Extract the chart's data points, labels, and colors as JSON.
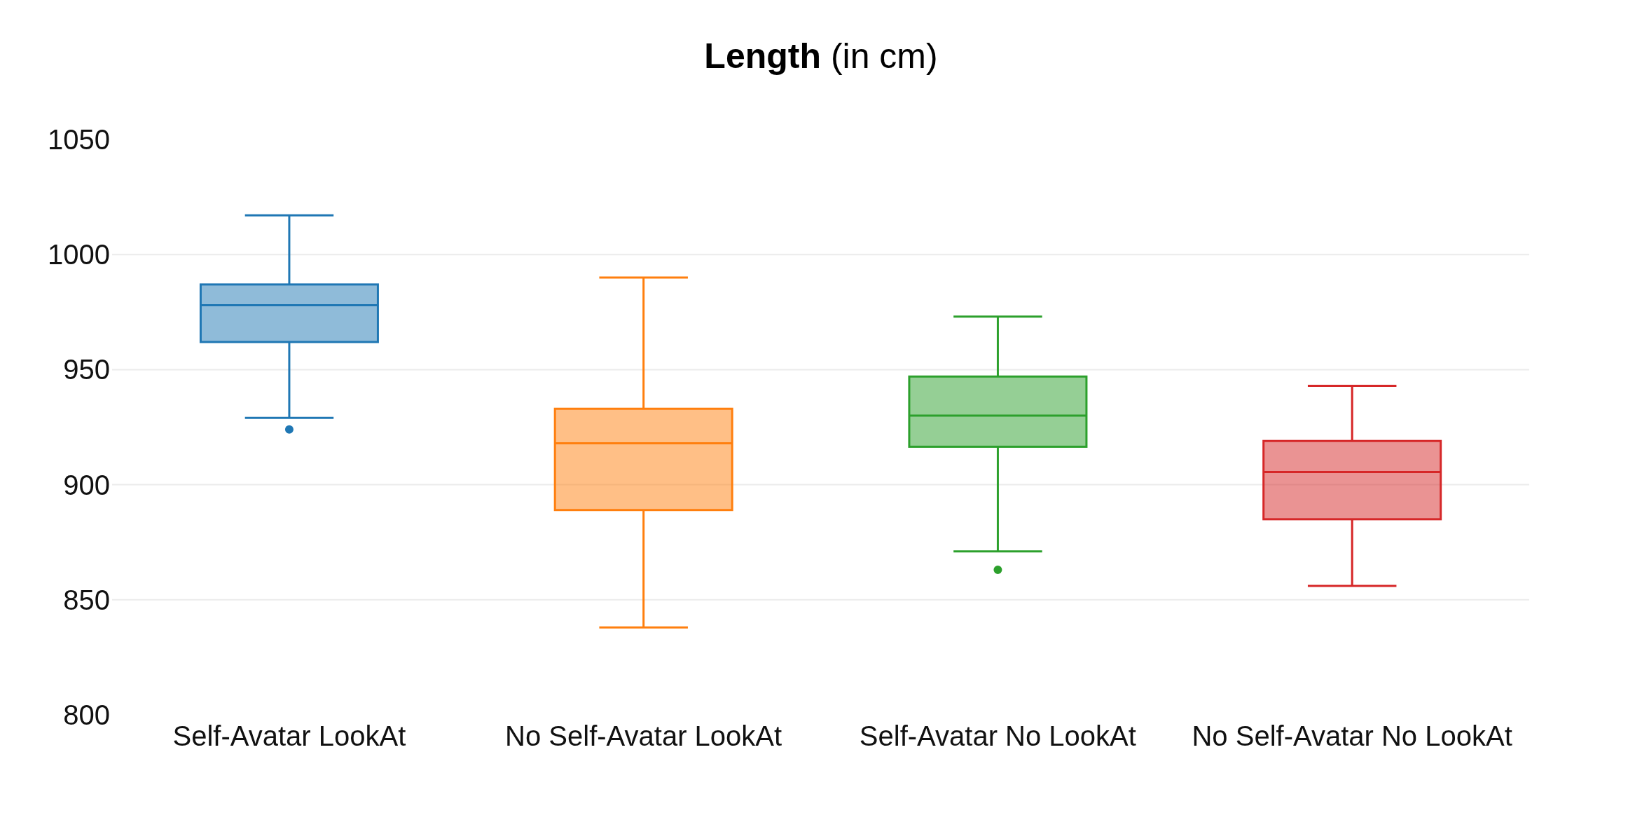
{
  "chart_data": {
    "type": "box",
    "title": "Length (in cm)",
    "categories": [
      "Self-Avatar LookAt",
      "No Self-Avatar LookAt",
      "Self-Avatar No LookAt",
      "No Self-Avatar No LookAt"
    ],
    "boxes": [
      {
        "low": 929,
        "q1": 962,
        "median": 978,
        "q3": 987,
        "high": 1017,
        "outliers": [
          924
        ]
      },
      {
        "low": 838,
        "q1": 889,
        "median": 918,
        "q3": 933,
        "high": 990
      },
      {
        "low": 871,
        "q1": 916.5,
        "median": 930,
        "q3": 947,
        "high": 973,
        "outliers": [
          863
        ]
      },
      {
        "low": 856,
        "q1": 885,
        "median": 905.5,
        "q3": 919,
        "high": 943
      }
    ],
    "colors": [
      "#1f77b4",
      "#ff7f0e",
      "#2ca02c",
      "#d62728"
    ],
    "ylim": [
      800,
      1050
    ],
    "yticks": [
      800,
      850,
      900,
      950,
      1000,
      1050
    ],
    "grid": "y"
  }
}
